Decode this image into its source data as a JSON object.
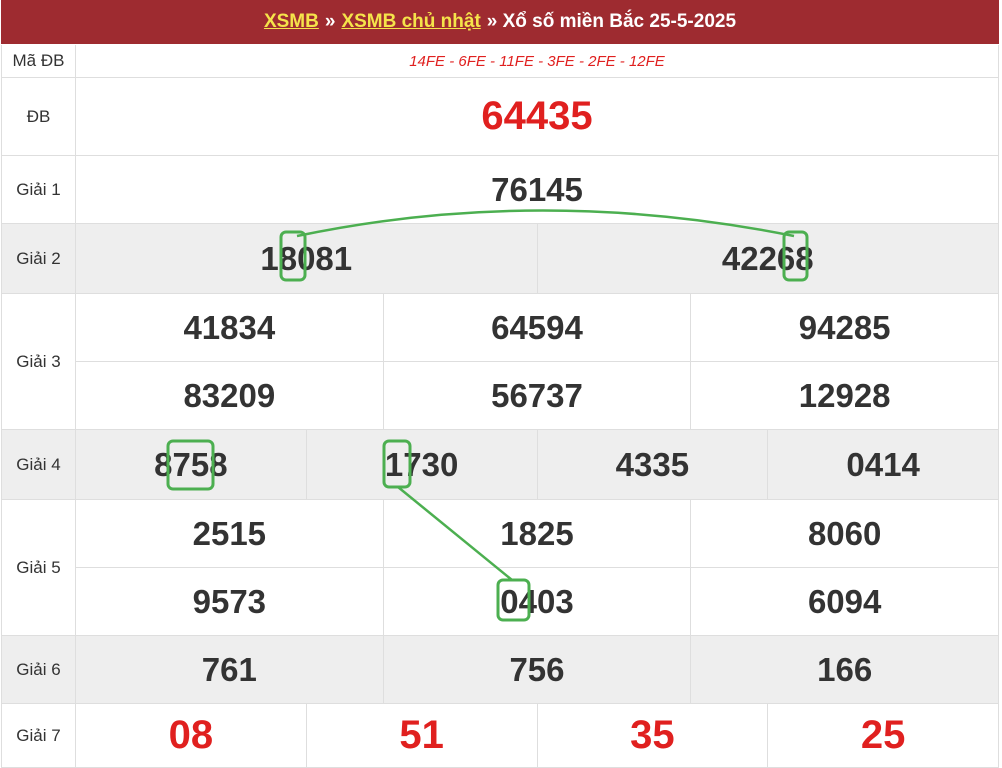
{
  "header": {
    "link1": "XSMB",
    "sep": "»",
    "link2": "XSMB chủ nhật",
    "title": "» Xổ số miền Bắc 25-5-2025"
  },
  "rows": [
    {
      "label": "Mã ĐB",
      "values": [
        "14FE - 6FE - 11FE - 3FE - 2FE - 12FE"
      ]
    },
    {
      "label": "ĐB",
      "values": [
        "64435"
      ]
    },
    {
      "label": "Giải 1",
      "values": [
        "76145"
      ]
    },
    {
      "label": "Giải 2",
      "values": [
        "18081",
        "42268"
      ]
    },
    {
      "label": "Giải 3",
      "values": [
        "41834",
        "64594",
        "94285",
        "83209",
        "56737",
        "12928"
      ]
    },
    {
      "label": "Giải 4",
      "values": [
        "8758",
        "1730",
        "4335",
        "0414"
      ]
    },
    {
      "label": "Giải 5",
      "values": [
        "2515",
        "1825",
        "8060",
        "9573",
        "0403",
        "6094"
      ]
    },
    {
      "label": "Giải 6",
      "values": [
        "761",
        "756",
        "166"
      ]
    },
    {
      "label": "Giải 7",
      "values": [
        "08",
        "51",
        "35",
        "25"
      ]
    }
  ]
}
